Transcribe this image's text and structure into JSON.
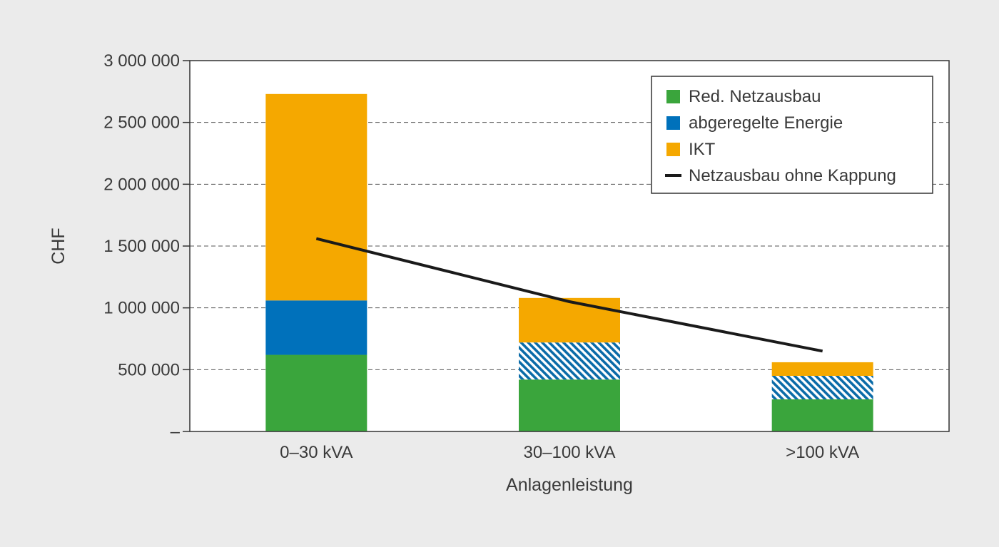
{
  "chart_data": {
    "type": "bar",
    "stacked": true,
    "title": "",
    "xlabel": "Anlagenleistung",
    "ylabel": "CHF",
    "ylim": [
      0,
      3000000
    ],
    "yticks": [
      0,
      500000,
      1000000,
      1500000,
      2000000,
      2500000,
      3000000
    ],
    "ytick_labels": [
      "–",
      "500 000",
      "1 000 000",
      "1 500 000",
      "2 000 000",
      "2 500 000",
      "3 000 000"
    ],
    "grid": "horizontal-dashed",
    "legend_position": "top-right",
    "categories": [
      "0–30 kVA",
      "30–100 kVA",
      ">100 kVA"
    ],
    "series": [
      {
        "name": "Red. Netzausbau",
        "kind": "bar",
        "color": "#3aa53c",
        "values": [
          620000,
          420000,
          260000
        ]
      },
      {
        "name": "abgeregelte Energie",
        "kind": "bar",
        "color": "#0071bb",
        "pattern_by_category": [
          "solid",
          "hatched",
          "hatched"
        ],
        "values": [
          440000,
          300000,
          190000
        ]
      },
      {
        "name": "IKT",
        "kind": "bar",
        "color": "#f5a800",
        "values": [
          1670000,
          360000,
          110000
        ]
      },
      {
        "name": "Netzausbau ohne Kappung",
        "kind": "line",
        "color": "#1a1a1a",
        "values": [
          1560000,
          1050000,
          650000
        ]
      }
    ]
  }
}
